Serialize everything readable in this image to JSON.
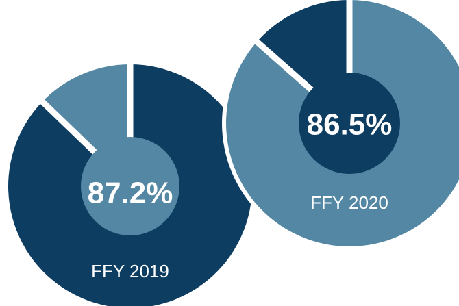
{
  "chart_data": [
    {
      "type": "pie",
      "title": "FFY 2019",
      "values": [
        87.2,
        12.8
      ],
      "value_labels": [
        "87.2%",
        null
      ],
      "colors": [
        "#0e3d62",
        "#5387a4"
      ]
    },
    {
      "type": "pie",
      "title": "FFY 2020",
      "values": [
        86.5,
        13.5
      ],
      "value_labels": [
        "86.5%",
        null
      ],
      "colors": [
        "#5387a4",
        "#0e3d62"
      ]
    }
  ]
}
